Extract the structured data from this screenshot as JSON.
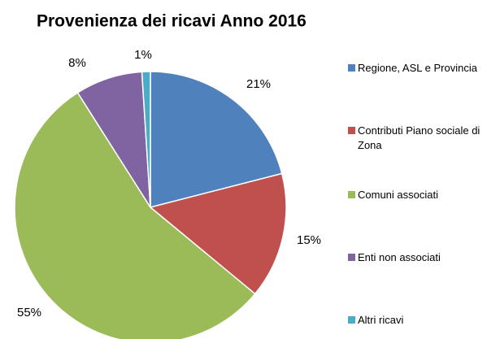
{
  "chart_data": {
    "type": "pie",
    "title": "Provenienza dei ricavi Anno 2016",
    "categories": [
      "Regione, ASL e Provincia",
      "Contributi Piano sociale di Zona",
      "Comuni associati",
      "Enti non associati",
      "Altri ricavi"
    ],
    "values": [
      21,
      15,
      55,
      8,
      1
    ],
    "value_labels": [
      "21%",
      "15%",
      "55%",
      "8%",
      "1%"
    ],
    "colors": [
      "#4f81bd",
      "#c0504d",
      "#9bbb59",
      "#8064a2",
      "#4bacc6"
    ],
    "legend": "right"
  }
}
